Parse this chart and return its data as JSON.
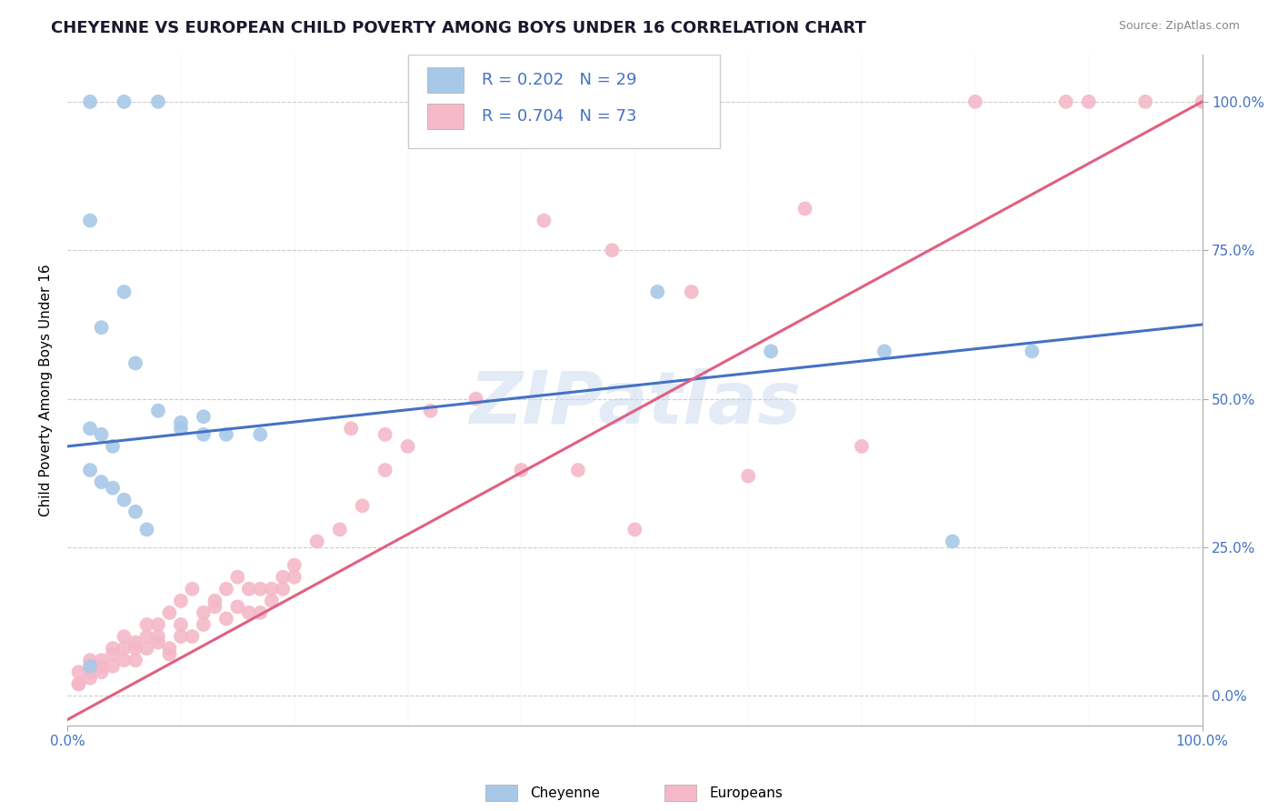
{
  "title": "CHEYENNE VS EUROPEAN CHILD POVERTY AMONG BOYS UNDER 16 CORRELATION CHART",
  "source": "Source: ZipAtlas.com",
  "ylabel": "Child Poverty Among Boys Under 16",
  "xlabel": "",
  "watermark": "ZIPatlas",
  "xlim": [
    0,
    1
  ],
  "ylim": [
    -0.05,
    1.08
  ],
  "ytick_labels": [
    "0.0%",
    "25.0%",
    "50.0%",
    "75.0%",
    "100.0%"
  ],
  "ytick_vals": [
    0,
    0.25,
    0.5,
    0.75,
    1.0
  ],
  "xtick_labels": [
    "0.0%",
    "100.0%"
  ],
  "xtick_vals": [
    0,
    1.0
  ],
  "cheyenne_color": "#a8c8e8",
  "europeans_color": "#f4b8c8",
  "cheyenne_line_color": "#4472c4",
  "europeans_line_color": "#e06080",
  "cheyenne_R": 0.202,
  "cheyenne_N": 29,
  "europeans_R": 0.704,
  "europeans_N": 73,
  "legend_text_color": "#4472c4",
  "cheyenne_x": [
    0.02,
    0.05,
    0.08,
    0.02,
    0.05,
    0.03,
    0.06,
    0.08,
    0.1,
    0.12,
    0.14,
    0.17,
    0.02,
    0.03,
    0.04,
    0.02,
    0.03,
    0.04,
    0.05,
    0.06,
    0.07,
    0.1,
    0.12,
    0.52,
    0.62,
    0.72,
    0.78,
    0.85,
    0.02
  ],
  "cheyenne_y": [
    1.0,
    1.0,
    1.0,
    0.8,
    0.68,
    0.62,
    0.56,
    0.48,
    0.46,
    0.47,
    0.44,
    0.44,
    0.45,
    0.44,
    0.42,
    0.38,
    0.36,
    0.35,
    0.33,
    0.31,
    0.28,
    0.45,
    0.44,
    0.68,
    0.58,
    0.58,
    0.26,
    0.58,
    0.05
  ],
  "europeans_x": [
    0.01,
    0.02,
    0.03,
    0.04,
    0.05,
    0.06,
    0.07,
    0.08,
    0.09,
    0.1,
    0.11,
    0.12,
    0.13,
    0.14,
    0.15,
    0.16,
    0.17,
    0.18,
    0.19,
    0.2,
    0.01,
    0.02,
    0.03,
    0.04,
    0.05,
    0.06,
    0.07,
    0.08,
    0.09,
    0.1,
    0.01,
    0.02,
    0.03,
    0.04,
    0.05,
    0.06,
    0.07,
    0.08,
    0.09,
    0.1,
    0.11,
    0.12,
    0.13,
    0.14,
    0.15,
    0.16,
    0.17,
    0.18,
    0.19,
    0.2,
    0.22,
    0.24,
    0.26,
    0.28,
    0.3,
    0.25,
    0.28,
    0.32,
    0.36,
    0.4,
    0.45,
    0.5,
    0.6,
    0.7,
    0.8,
    0.9,
    1.0,
    0.42,
    0.48,
    0.55,
    0.65,
    0.88,
    0.95
  ],
  "europeans_y": [
    0.02,
    0.04,
    0.06,
    0.08,
    0.1,
    0.08,
    0.1,
    0.12,
    0.14,
    0.16,
    0.18,
    0.14,
    0.16,
    0.18,
    0.2,
    0.18,
    0.14,
    0.16,
    0.18,
    0.2,
    0.04,
    0.06,
    0.05,
    0.07,
    0.06,
    0.09,
    0.12,
    0.1,
    0.08,
    0.12,
    0.02,
    0.03,
    0.04,
    0.05,
    0.08,
    0.06,
    0.08,
    0.09,
    0.07,
    0.1,
    0.1,
    0.12,
    0.15,
    0.13,
    0.15,
    0.14,
    0.18,
    0.18,
    0.2,
    0.22,
    0.26,
    0.28,
    0.32,
    0.38,
    0.42,
    0.45,
    0.44,
    0.48,
    0.5,
    0.38,
    0.38,
    0.28,
    0.37,
    0.42,
    1.0,
    1.0,
    1.0,
    0.8,
    0.75,
    0.68,
    0.82,
    1.0,
    1.0
  ],
  "ch_line_x0": 0.0,
  "ch_line_y0": 0.42,
  "ch_line_x1": 1.0,
  "ch_line_y1": 0.625,
  "eu_line_x0": 0.0,
  "eu_line_y0": -0.04,
  "eu_line_x1": 1.0,
  "eu_line_y1": 1.0,
  "background_color": "#ffffff",
  "grid_color": "#cccccc",
  "title_fontsize": 13,
  "label_fontsize": 11,
  "tick_fontsize": 11
}
